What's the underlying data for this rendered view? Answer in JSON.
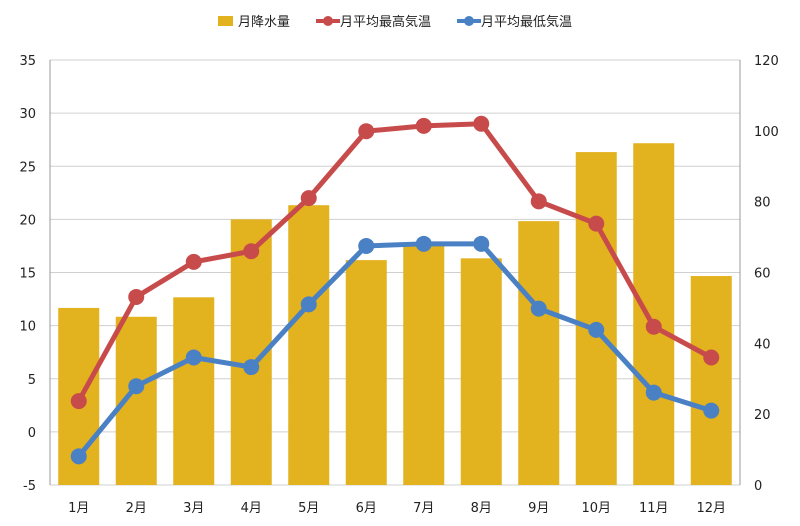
{
  "chart_data": {
    "type": "bar+line",
    "title": "",
    "categories": [
      "1月",
      "2月",
      "3月",
      "4月",
      "5月",
      "6月",
      "7月",
      "8月",
      "9月",
      "10月",
      "11月",
      "12月"
    ],
    "series": [
      {
        "name": "月降水量",
        "type": "bar",
        "axis": "right",
        "color": "#e3b21f",
        "values": [
          50,
          47.5,
          53,
          75,
          79,
          63.5,
          68,
          64,
          74.5,
          94,
          96.5,
          59
        ]
      },
      {
        "name": "月平均最高気温",
        "type": "line",
        "axis": "left",
        "color": "#c84b4b",
        "values": [
          2.9,
          12.7,
          16,
          17,
          22,
          28.3,
          28.8,
          29,
          21.7,
          19.6,
          9.9,
          7
        ]
      },
      {
        "name": "月平均最低気温",
        "type": "line",
        "axis": "left",
        "color": "#4a80c4",
        "values": [
          -2.3,
          4.3,
          7,
          6.1,
          12,
          17.5,
          17.7,
          17.7,
          11.6,
          9.6,
          3.7,
          2
        ]
      }
    ],
    "ylim_left": [
      -5,
      35
    ],
    "yticks_left": [
      -5,
      0,
      5,
      10,
      15,
      20,
      25,
      30,
      35
    ],
    "ylim_right": [
      0,
      120
    ],
    "yticks_right": [
      0,
      20,
      40,
      60,
      80,
      100,
      120
    ],
    "grid": true,
    "legend": "top"
  }
}
